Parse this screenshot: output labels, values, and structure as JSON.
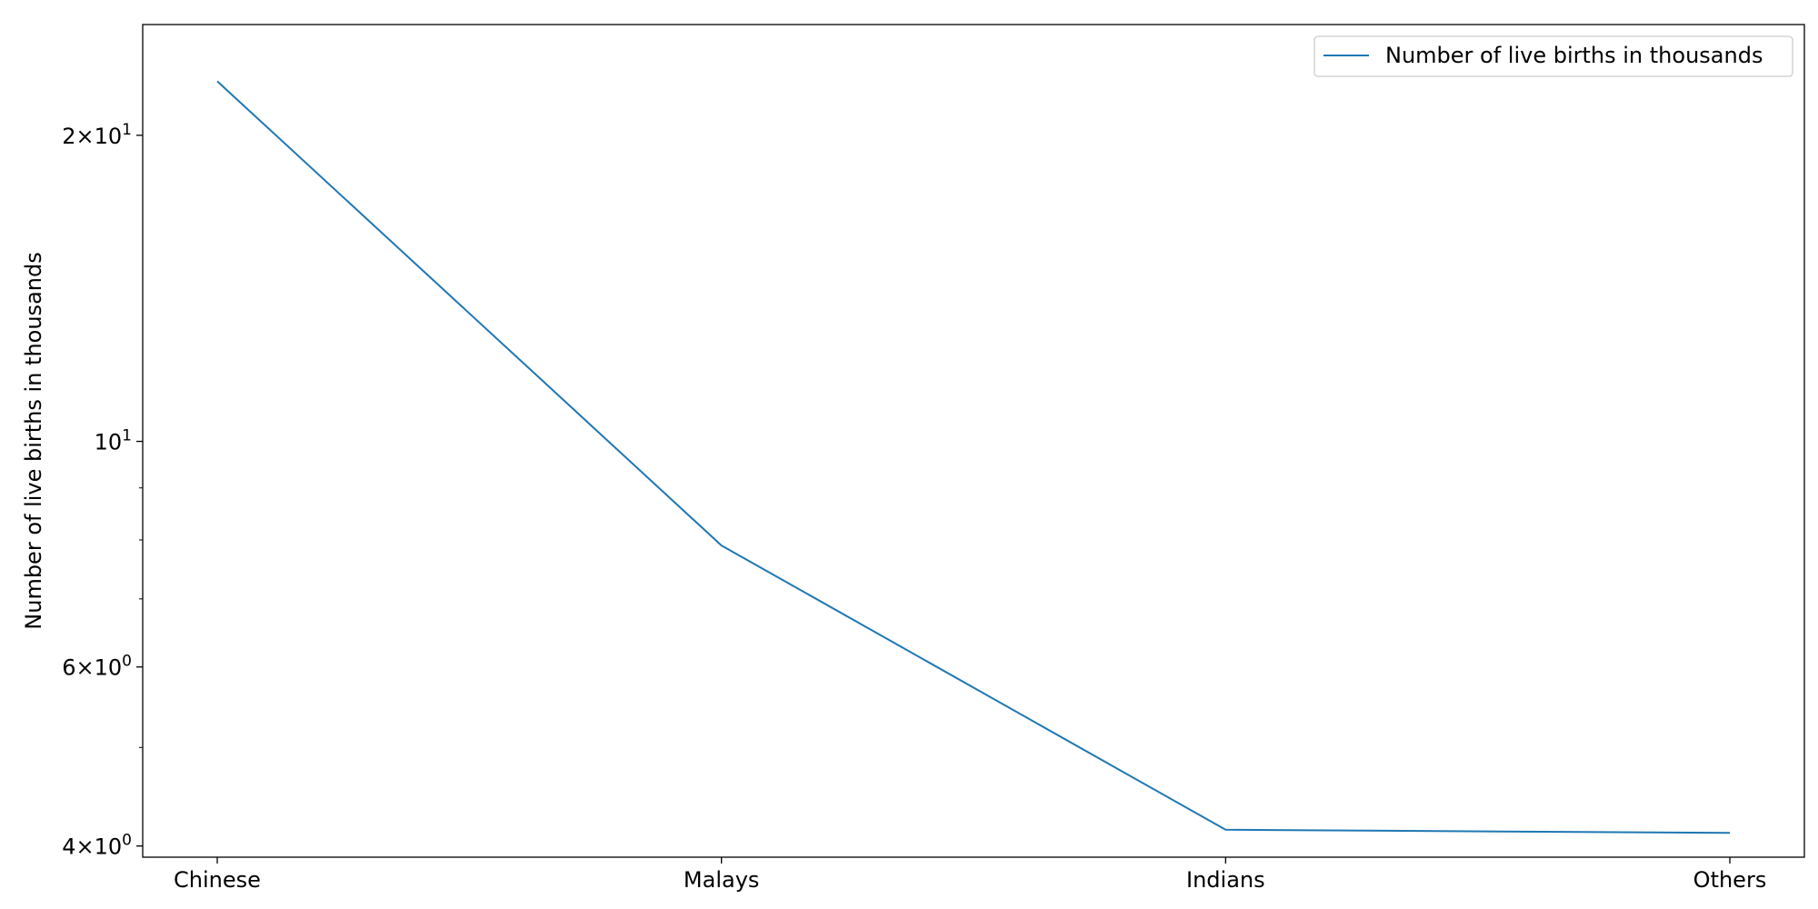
{
  "chart_data": {
    "type": "line",
    "title": "",
    "xlabel": "",
    "ylabel": "Number of live births in thousands",
    "yscale": "log",
    "ylim": [
      3.9,
      25.7
    ],
    "categories": [
      "Chinese",
      "Malays",
      "Indians",
      "Others"
    ],
    "series": [
      {
        "name": "Number of live births in thousands",
        "color": "#1f77b4",
        "values": [
          22.6,
          7.9,
          4.15,
          4.12
        ]
      }
    ],
    "yticks_major": [
      {
        "value": 4,
        "base": "4",
        "exp": "0"
      },
      {
        "value": 6,
        "base": "6",
        "exp": "0"
      },
      {
        "value": 10,
        "base": "10",
        "exp": "1"
      },
      {
        "value": 20,
        "base": "2",
        "exp": "1"
      }
    ],
    "yticks_minor": [
      5,
      7,
      8,
      9
    ],
    "grid": false,
    "legend": {
      "position": "top-right"
    }
  }
}
